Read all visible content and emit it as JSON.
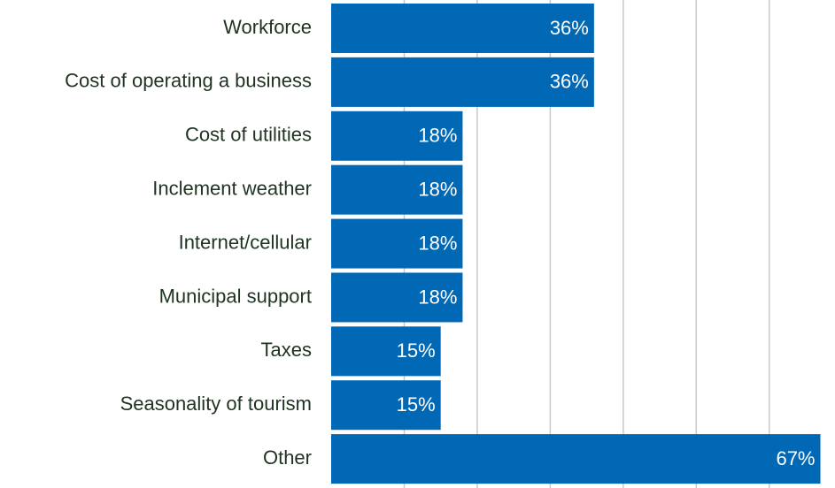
{
  "chart_data": {
    "type": "bar",
    "orientation": "horizontal",
    "categories": [
      "Workforce",
      "Cost of operating a business",
      "Cost of utilities",
      "Inclement weather",
      "Internet/cellular",
      "Municipal support",
      "Taxes",
      "Seasonality of tourism",
      "Other"
    ],
    "values": [
      36,
      36,
      18,
      18,
      18,
      18,
      15,
      15,
      67
    ],
    "value_labels": [
      "36%",
      "36%",
      "18%",
      "18%",
      "18%",
      "18%",
      "15%",
      "15%",
      "67%"
    ],
    "color": "#0068b5",
    "xlim": [
      0,
      69
    ],
    "xticks": [
      10,
      20,
      30,
      40,
      50,
      60
    ],
    "tick_labels": false,
    "grid": true
  }
}
